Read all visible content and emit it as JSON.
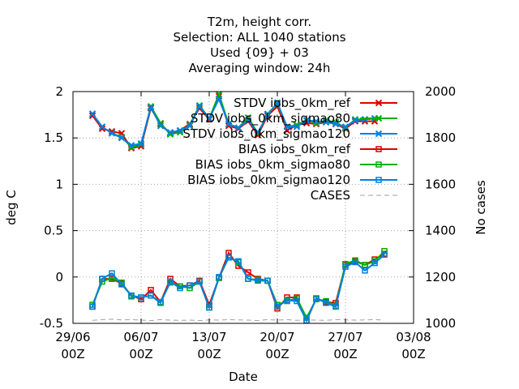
{
  "chart_data": {
    "type": "line",
    "title_lines": [
      "T2m, height corr.",
      "Selection: ALL   1040 stations",
      "Used {09} + 03",
      "Averaging window: 24h"
    ],
    "xlabel": "Date",
    "ylabel": "deg C",
    "y2label": "No cases",
    "xlim": [
      0,
      35
    ],
    "ylim": [
      -0.5,
      2
    ],
    "y2lim": [
      1000,
      2000
    ],
    "xticks": [
      {
        "x": 0,
        "date": "29/06",
        "hour": "00Z"
      },
      {
        "x": 7,
        "date": "06/07",
        "hour": "00Z"
      },
      {
        "x": 14,
        "date": "13/07",
        "hour": "00Z"
      },
      {
        "x": 21,
        "date": "20/07",
        "hour": "00Z"
      },
      {
        "x": 28,
        "date": "27/07",
        "hour": "00Z"
      },
      {
        "x": 35,
        "date": "03/08",
        "hour": "00Z"
      }
    ],
    "yticks": [
      "-0.5",
      "0",
      "0.5",
      "1",
      "1.5",
      "2"
    ],
    "y2ticks": [
      "1000",
      "1200",
      "1400",
      "1600",
      "1800",
      "2000"
    ],
    "grid": true,
    "legend_position": "top-right",
    "x": [
      2,
      3,
      4,
      5,
      6,
      7,
      8,
      9,
      10,
      11,
      12,
      13,
      14,
      15,
      16,
      17,
      18,
      19,
      20,
      21,
      22,
      23,
      24,
      25,
      26,
      27,
      28,
      29,
      30,
      31,
      32
    ],
    "series": [
      {
        "name": "STDV iobs_0km_ref",
        "color": "#e00000",
        "marker": "x",
        "axis": "left",
        "values": [
          1.74,
          1.6,
          1.57,
          1.55,
          1.39,
          1.41,
          1.82,
          1.65,
          1.55,
          1.58,
          1.65,
          1.82,
          1.7,
          1.95,
          1.63,
          1.6,
          1.68,
          1.53,
          1.74,
          1.84,
          1.58,
          1.64,
          1.66,
          1.65,
          1.67,
          1.65,
          1.6,
          1.68,
          1.68,
          1.68,
          null
        ]
      },
      {
        "name": "STDV iobs_0km_sigmao80",
        "color": "#00b000",
        "marker": "x",
        "axis": "left",
        "values": [
          1.76,
          1.62,
          1.55,
          1.51,
          1.4,
          1.43,
          1.84,
          1.66,
          1.54,
          1.56,
          1.64,
          1.85,
          1.71,
          1.97,
          1.65,
          1.61,
          1.72,
          1.55,
          1.76,
          1.87,
          1.62,
          1.64,
          1.69,
          1.66,
          1.69,
          1.67,
          1.61,
          1.7,
          1.7,
          1.71,
          null
        ]
      },
      {
        "name": "STDV iobs_0km_sigmao120",
        "color": "#0080e0",
        "marker": "x",
        "axis": "left",
        "values": [
          1.76,
          1.62,
          1.55,
          1.5,
          1.42,
          1.44,
          1.83,
          1.63,
          1.56,
          1.58,
          1.63,
          1.84,
          1.71,
          1.92,
          1.65,
          1.61,
          1.69,
          1.56,
          1.75,
          1.88,
          1.62,
          1.62,
          1.69,
          1.68,
          1.67,
          1.65,
          1.62,
          1.69,
          1.7,
          1.71,
          null
        ]
      },
      {
        "name": "BIAS iobs_0km_ref",
        "color": "#e00000",
        "marker": "square",
        "axis": "left",
        "values": [
          -0.32,
          -0.02,
          -0.02,
          -0.07,
          -0.2,
          -0.24,
          -0.14,
          -0.27,
          -0.02,
          -0.1,
          -0.09,
          -0.04,
          -0.3,
          -0.01,
          0.26,
          0.12,
          0.05,
          -0.02,
          -0.04,
          -0.34,
          -0.22,
          -0.22,
          -0.47,
          -0.23,
          -0.27,
          -0.28,
          0.13,
          0.17,
          0.13,
          0.19,
          0.25
        ]
      },
      {
        "name": "BIAS iobs_0km_sigmao80",
        "color": "#00b000",
        "marker": "square",
        "axis": "left",
        "values": [
          -0.3,
          -0.05,
          -0.01,
          -0.06,
          -0.21,
          -0.22,
          -0.2,
          -0.27,
          -0.06,
          -0.1,
          -0.12,
          -0.05,
          -0.33,
          -0.01,
          0.21,
          0.16,
          -0.02,
          -0.03,
          -0.04,
          -0.3,
          -0.26,
          -0.23,
          -0.44,
          -0.24,
          -0.26,
          -0.31,
          0.14,
          0.18,
          0.13,
          0.17,
          0.28
        ]
      },
      {
        "name": "BIAS iobs_0km_sigmao120",
        "color": "#0080e0",
        "marker": "square",
        "axis": "left",
        "values": [
          -0.32,
          -0.02,
          0.04,
          -0.08,
          -0.2,
          -0.22,
          -0.2,
          -0.28,
          -0.05,
          -0.12,
          -0.09,
          -0.05,
          -0.33,
          0.0,
          0.21,
          0.17,
          -0.02,
          -0.04,
          -0.04,
          -0.32,
          -0.25,
          -0.26,
          -0.47,
          -0.23,
          -0.28,
          -0.32,
          0.11,
          0.16,
          0.07,
          0.15,
          0.24
        ]
      },
      {
        "name": "CASES",
        "color": "#a0a0a0",
        "marker": "none",
        "dash": true,
        "axis": "right",
        "values": [
          1013,
          1016,
          1018,
          1015,
          1016,
          1014,
          1012,
          1016,
          1014,
          1013,
          1014,
          1012,
          1015,
          1014,
          1016,
          1015,
          1014,
          1012,
          1016,
          1014,
          1016,
          1013,
          1015,
          1014,
          1013,
          1016,
          1015,
          1014,
          1015,
          1016,
          1014
        ]
      }
    ]
  }
}
